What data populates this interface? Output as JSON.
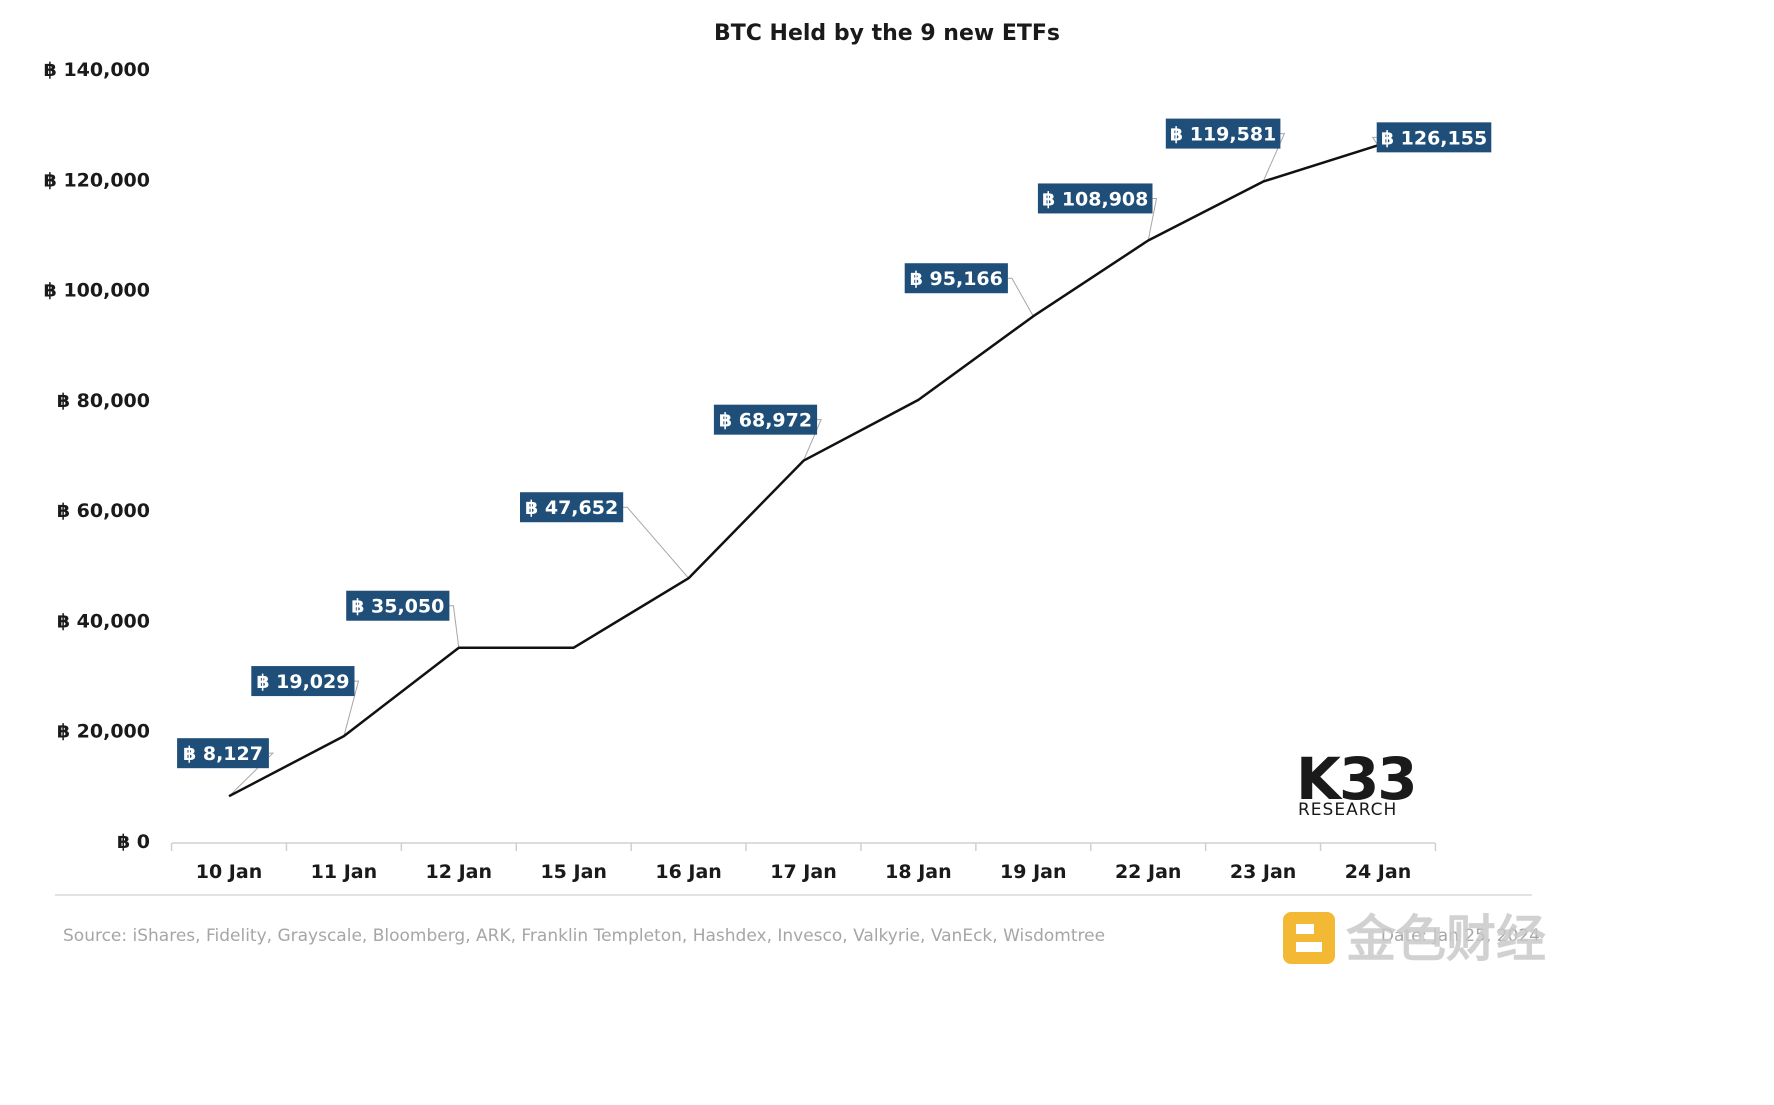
{
  "chart_data": {
    "type": "line",
    "title": "BTC Held by the 9 new ETFs",
    "categories": [
      "10 Jan",
      "11 Jan",
      "12 Jan",
      "15 Jan",
      "16 Jan",
      "17 Jan",
      "18 Jan",
      "19 Jan",
      "22 Jan",
      "23 Jan",
      "24 Jan"
    ],
    "series": [
      {
        "name": "",
        "values": [
          8127,
          19029,
          35050,
          35050,
          47652,
          68972,
          80000,
          95166,
          108908,
          119581,
          126155
        ],
        "labels": [
          "฿ 8,127",
          "฿ 19,029",
          "฿ 35,050",
          null,
          "฿ 47,652",
          "฿ 68,972",
          null,
          "฿ 95,166",
          "฿ 108,908",
          "฿ 119,581",
          "฿ 126,155"
        ],
        "color": "#111111"
      }
    ],
    "y_ticks": [
      "฿ 0",
      "฿ 20,000",
      "฿ 40,000",
      "฿ 60,000",
      "฿ 80,000",
      "฿ 100,000",
      "฿ 120,000",
      "฿ 140,000"
    ],
    "ylim": [
      0,
      140000
    ],
    "grid": false,
    "legend": "none",
    "label_color": "#1f4e79",
    "xlabel": "",
    "ylabel": ""
  },
  "source_text": "Source:  iShares, Fidelity, Grayscale, Bloomberg, ARK, Franklin Templeton, Hashdex, Invesco, Valkyrie, VanEck, Wisdomtree",
  "date_text": "Date: Jan 25, 2024",
  "logo": {
    "main": "K33",
    "sub": "RESEARCH"
  },
  "watermark": {
    "text": "金色财经",
    "color": "#f2b01e"
  }
}
